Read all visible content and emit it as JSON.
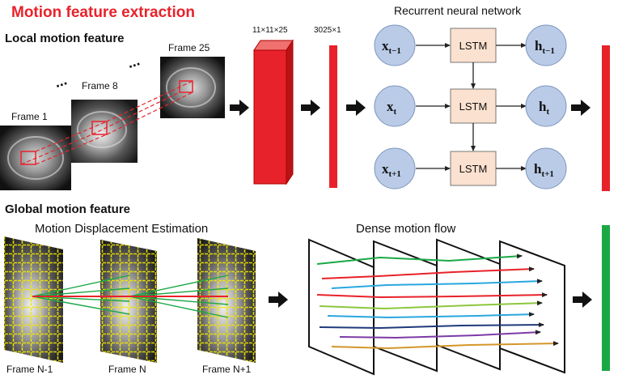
{
  "title": "Motion feature extraction",
  "local": {
    "heading": "Local motion feature",
    "frames": [
      "Frame 1",
      "Frame 8",
      "Frame 25"
    ],
    "ellipsis": "...",
    "block_label": "11×11×25",
    "vector_label": "3025×1"
  },
  "rnn": {
    "title": "Recurrent neural network",
    "rows": [
      {
        "x": "x",
        "x_sub": "t−1",
        "cell": "LSTM",
        "h": "h",
        "h_sub": "t−1"
      },
      {
        "x": "x",
        "x_sub": "t",
        "cell": "LSTM",
        "h": "h",
        "h_sub": "t"
      },
      {
        "x": "x",
        "x_sub": "t+1",
        "cell": "LSTM",
        "h": "h",
        "h_sub": "t+1"
      }
    ]
  },
  "global": {
    "heading": "Global motion feature",
    "mde_title": "Motion Displacement Estimation",
    "frames": [
      "Frame N-1",
      "Frame N",
      "Frame N+1"
    ],
    "flow_title": "Dense motion flow"
  },
  "colors": {
    "title_red": "#e8222a",
    "block_red": "#e8222a",
    "bar_red": "#e8222a",
    "bar_green": "#1aa845",
    "node_blue": "#b9cbe7",
    "lstm_fill": "#fbe1cf",
    "grid_yellow": "#f2e600"
  }
}
